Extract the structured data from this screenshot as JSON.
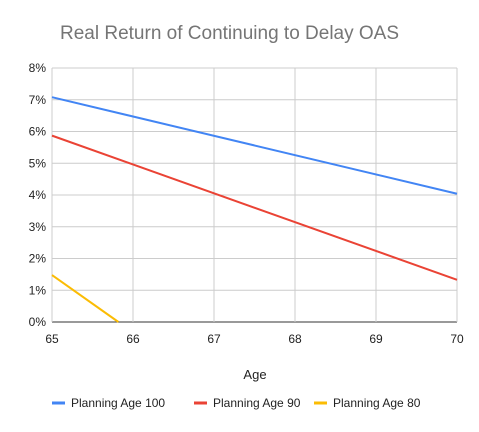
{
  "chart_data": {
    "type": "line",
    "title": "Real Return of Continuing to Delay OAS",
    "xlabel": "Age",
    "ylabel": "",
    "xlim": [
      65,
      70
    ],
    "ylim": [
      0,
      8
    ],
    "x_ticks": [
      "65",
      "66",
      "67",
      "68",
      "69",
      "70"
    ],
    "y_ticks": [
      "0%",
      "1%",
      "2%",
      "3%",
      "4%",
      "5%",
      "6%",
      "7%",
      "8%"
    ],
    "grid": true,
    "legend_position": "bottom",
    "series": [
      {
        "name": "Planning Age 100",
        "color": "#4285F4",
        "x": [
          65,
          70
        ],
        "y": [
          7.08,
          4.04
        ]
      },
      {
        "name": "Planning Age 90",
        "color": "#EA4335",
        "x": [
          65,
          70
        ],
        "y": [
          5.87,
          1.33
        ]
      },
      {
        "name": "Planning Age 80",
        "color": "#FBBC04",
        "x": [
          65,
          65.82
        ],
        "y": [
          1.48,
          0
        ]
      }
    ]
  }
}
